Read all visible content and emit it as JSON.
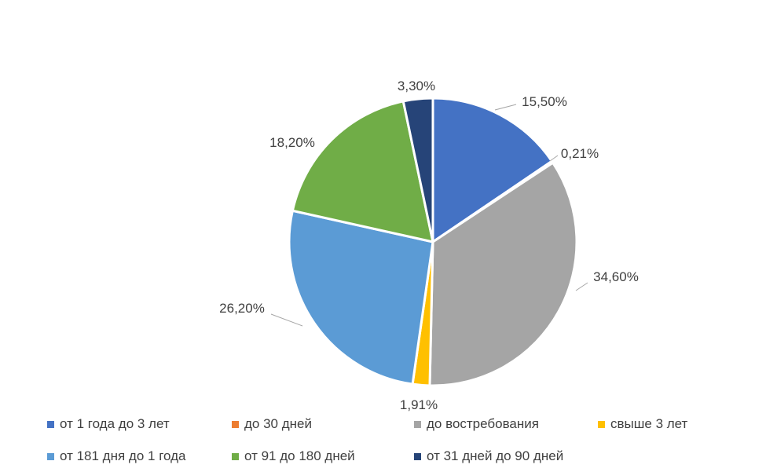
{
  "chart_data": {
    "type": "pie",
    "title": "",
    "slices": [
      {
        "label": "от 1  года до 3 лет",
        "value": 15.5,
        "display": "15,50%",
        "color": "#4472C4"
      },
      {
        "label": "до 30 дней",
        "value": 0.21,
        "display": "0,21%",
        "color": "#ED7D31"
      },
      {
        "label": "до востребования",
        "value": 34.6,
        "display": "34,60%",
        "color": "#A5A5A5"
      },
      {
        "label": "свыше 3 лет",
        "value": 1.91,
        "display": "1,91%",
        "color": "#FFC000"
      },
      {
        "label": "от 181 дня до 1 года",
        "value": 26.2,
        "display": "26,20%",
        "color": "#5B9BD5"
      },
      {
        "label": "от 91 до 180 дней",
        "value": 18.2,
        "display": "18,20%",
        "color": "#70AD47"
      },
      {
        "label": "от 31 дней до 90 дней",
        "value": 3.3,
        "display": "3,30%",
        "color": "#264478"
      }
    ],
    "legend_placement": "bottom"
  }
}
